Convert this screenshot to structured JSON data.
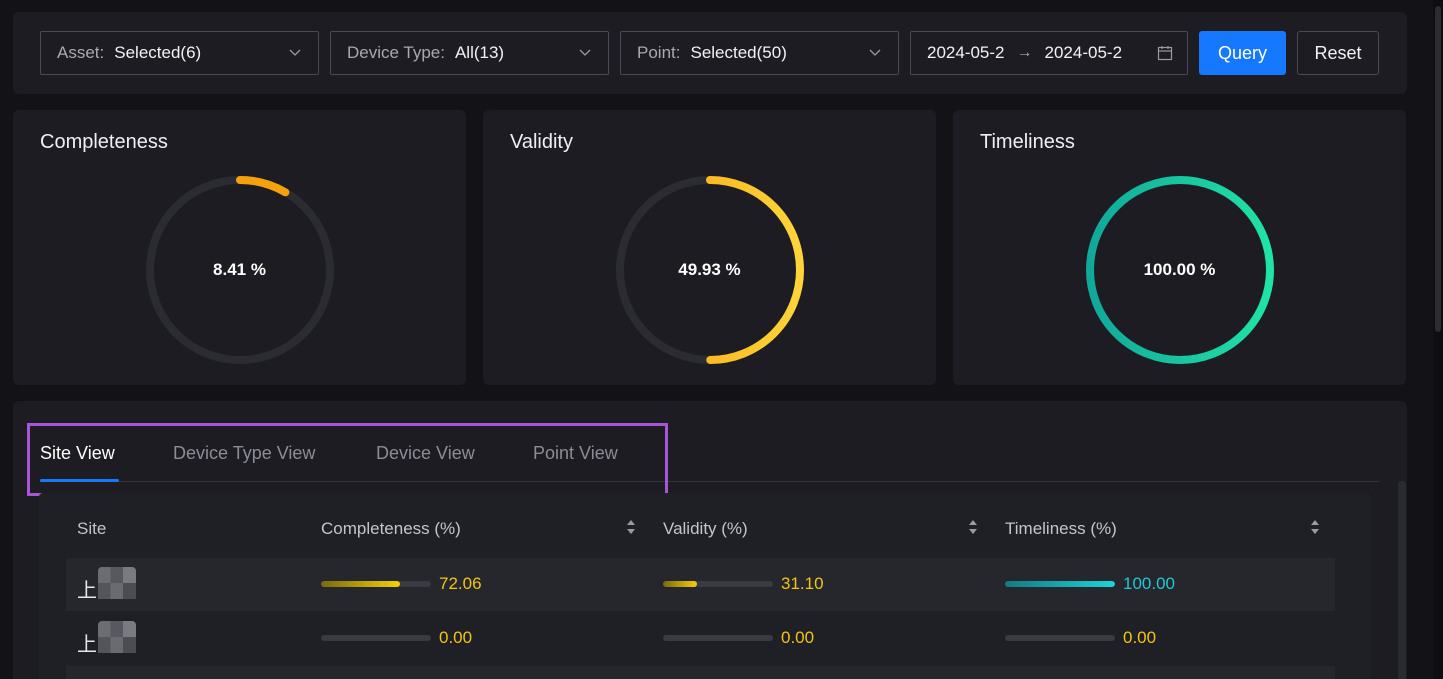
{
  "filters": {
    "asset": {
      "label": "Asset:",
      "value": "Selected(6)"
    },
    "device_type": {
      "label": "Device Type:",
      "value": "All(13)"
    },
    "point": {
      "label": "Point:",
      "value": "Selected(50)"
    },
    "date_range": {
      "start": "2024-05-2",
      "end": "2024-05-2",
      "separator": "→"
    },
    "query_label": "Query",
    "reset_label": "Reset"
  },
  "metrics": [
    {
      "title": "Completeness",
      "value_text": "8.41  %",
      "value": 8.41,
      "colors": [
        "#f5a20a",
        "#f5a20a"
      ]
    },
    {
      "title": "Validity",
      "value_text": "49.93  %",
      "value": 49.93,
      "colors": [
        "#f5a20a",
        "#ffd43b"
      ]
    },
    {
      "title": "Timeliness",
      "value_text": "100.00  %",
      "value": 100.0,
      "colors": [
        "#11a89a",
        "#20e3a6"
      ]
    }
  ],
  "tabs": [
    {
      "label": "Site View",
      "active": true
    },
    {
      "label": "Device Type View",
      "active": false
    },
    {
      "label": "Device View",
      "active": false
    },
    {
      "label": "Point View",
      "active": false
    }
  ],
  "table": {
    "headers": [
      "Site",
      "Completeness (%)",
      "Validity (%)",
      "Timeliness (%)"
    ],
    "rows": [
      {
        "site": "上",
        "completeness": 72.06,
        "completeness_text": "72.06",
        "validity": 31.1,
        "validity_text": "31.10",
        "timeliness": 100.0,
        "timeliness_text": "100.00"
      },
      {
        "site": "上",
        "completeness": 0.0,
        "completeness_text": "0.00",
        "validity": 0.0,
        "validity_text": "0.00",
        "timeliness": 0.0,
        "timeliness_text": "0.00"
      }
    ]
  },
  "colors": {
    "accent": "#1677ff",
    "highlight": "#a855d6",
    "bar_yellow": "#f3c511",
    "bar_teal": "#1fc9d4"
  }
}
